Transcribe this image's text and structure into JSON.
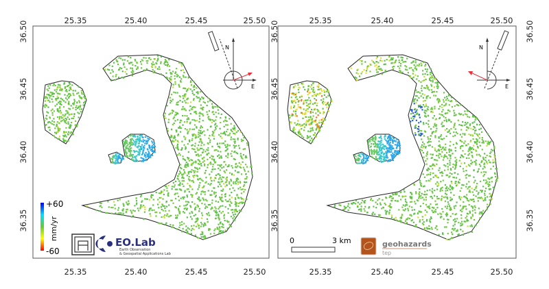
{
  "x_ticks": [
    "25.35",
    "25.40",
    "25.45",
    "25.50"
  ],
  "y_ticks": [
    "36.50",
    "36.45",
    "36.40",
    "36.35"
  ],
  "north_arrow": {
    "n_label": "N",
    "e_label": "E"
  },
  "colorbar": {
    "max": "+60",
    "min": "-60",
    "unit": "mm/yr",
    "colors": [
      "#0000ff",
      "#00e0ff",
      "#66cc33",
      "#ffff00",
      "#ff0000"
    ]
  },
  "logos": {
    "eolab_title": "EO.Lab",
    "eolab_sub1": "Earth Observation",
    "eolab_sub2": "& Geospatial Applications Lab",
    "geohazards": "geohazards",
    "tep": "tep"
  },
  "scale_bar": {
    "start": "0",
    "end": "3 km"
  },
  "colors": {
    "stable": "#6cc840",
    "frame": "#555555",
    "asc_arrow": "#e8323c"
  }
}
